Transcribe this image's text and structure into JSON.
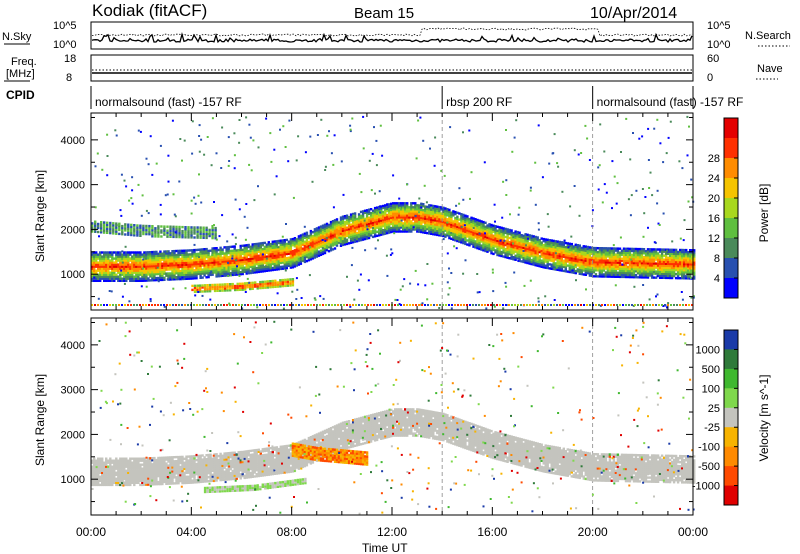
{
  "header": {
    "station": "Kodiak (fitACF)",
    "beam": "Beam 15",
    "date": "10/Apr/2014"
  },
  "noise_panel": {
    "left_label": "N.Sky",
    "left_ticks": [
      "10^5",
      "10^0"
    ],
    "right_ticks": [
      "10^5",
      "10^0"
    ],
    "right_label": "N.Search"
  },
  "freq_panel": {
    "left_label_1": "Freq.",
    "left_label_2": "[MHz]",
    "left_ticks": [
      "18",
      "8"
    ],
    "right_ticks": [
      "60",
      "0"
    ],
    "right_label": "Nave"
  },
  "cpid_panel": {
    "label": "CPID",
    "segments": [
      {
        "label": "normalsound (fast) -157 RF",
        "start_h": 0,
        "end_h": 14
      },
      {
        "label": "rbsp 200 RF",
        "start_h": 14,
        "end_h": 20
      },
      {
        "label": "normalsound (fast) -157 RF",
        "start_h": 20,
        "end_h": 24
      }
    ]
  },
  "time_axis": {
    "label": "Time UT",
    "ticks": [
      "00:00",
      "04:00",
      "08:00",
      "12:00",
      "16:00",
      "20:00",
      "00:00"
    ]
  },
  "colors": {
    "power_scale": [
      "#0000ff",
      "#2850b0",
      "#4a8a5a",
      "#5fbf3f",
      "#a8d81e",
      "#f5c400",
      "#ff8c00",
      "#ff3000",
      "#e40000"
    ],
    "velocity_scale": [
      "#1a3aa8",
      "#2f7a3a",
      "#3fb82f",
      "#7fd84c",
      "#c4c4be",
      "#f7b300",
      "#ff8a00",
      "#ff4a00",
      "#e00000"
    ]
  },
  "chart_data": [
    {
      "type": "heatmap",
      "quantity": "power",
      "ylabel": "Slant Range [km]",
      "yticks": [
        1000,
        2000,
        3000,
        4000
      ],
      "ylim": [
        200,
        4600
      ],
      "xlim": [
        0,
        24
      ],
      "colorbar": {
        "label": "Power [dB]",
        "ticks": [
          4,
          8,
          12,
          16,
          20,
          24,
          28
        ],
        "range": [
          0,
          30
        ]
      },
      "features": [
        {
          "range_center_km": [
            1200,
            1200,
            1250,
            1350,
            1500,
            2000,
            2300,
            2300,
            2200,
            1800,
            1500,
            1300,
            1250
          ],
          "time_h": [
            0,
            2,
            4,
            6,
            8,
            10,
            12,
            13,
            14,
            16,
            18,
            20,
            24
          ],
          "peak_db": 26
        },
        {
          "range_center_km": [
            2100,
            2000,
            1950
          ],
          "time_h": [
            0,
            2,
            5
          ],
          "peak_db": 16
        },
        {
          "range_center_km": [
            700,
            750,
            850
          ],
          "time_h": [
            4,
            6,
            8
          ],
          "peak_db": 26
        }
      ]
    },
    {
      "type": "heatmap",
      "quantity": "velocity",
      "ylabel": "Slant Range [km]",
      "yticks": [
        1000,
        2000,
        3000,
        4000
      ],
      "ylim": [
        200,
        4600
      ],
      "xlim": [
        0,
        24
      ],
      "colorbar": {
        "label": "Velocity [m s^-1]",
        "ticks": [
          1000,
          500,
          100,
          25,
          -25,
          -100,
          -500,
          -1000
        ]
      },
      "features": [
        {
          "range_center_km": [
            1200,
            1200,
            1250,
            1350,
            1500,
            2000,
            2300,
            2300,
            2200,
            1800,
            1500,
            1300,
            1250
          ],
          "time_h": [
            0,
            2,
            4,
            6,
            8,
            10,
            12,
            13,
            14,
            16,
            18,
            20,
            24
          ],
          "velocity_ms": 0
        },
        {
          "range_center_km": [
            1700,
            1600,
            1500
          ],
          "time_h": [
            8,
            9,
            11
          ],
          "velocity_ms": -150
        },
        {
          "range_center_km": [
            800,
            850,
            1000
          ],
          "time_h": [
            4.5,
            6.5,
            8.5
          ],
          "velocity_ms": 150
        }
      ]
    }
  ]
}
